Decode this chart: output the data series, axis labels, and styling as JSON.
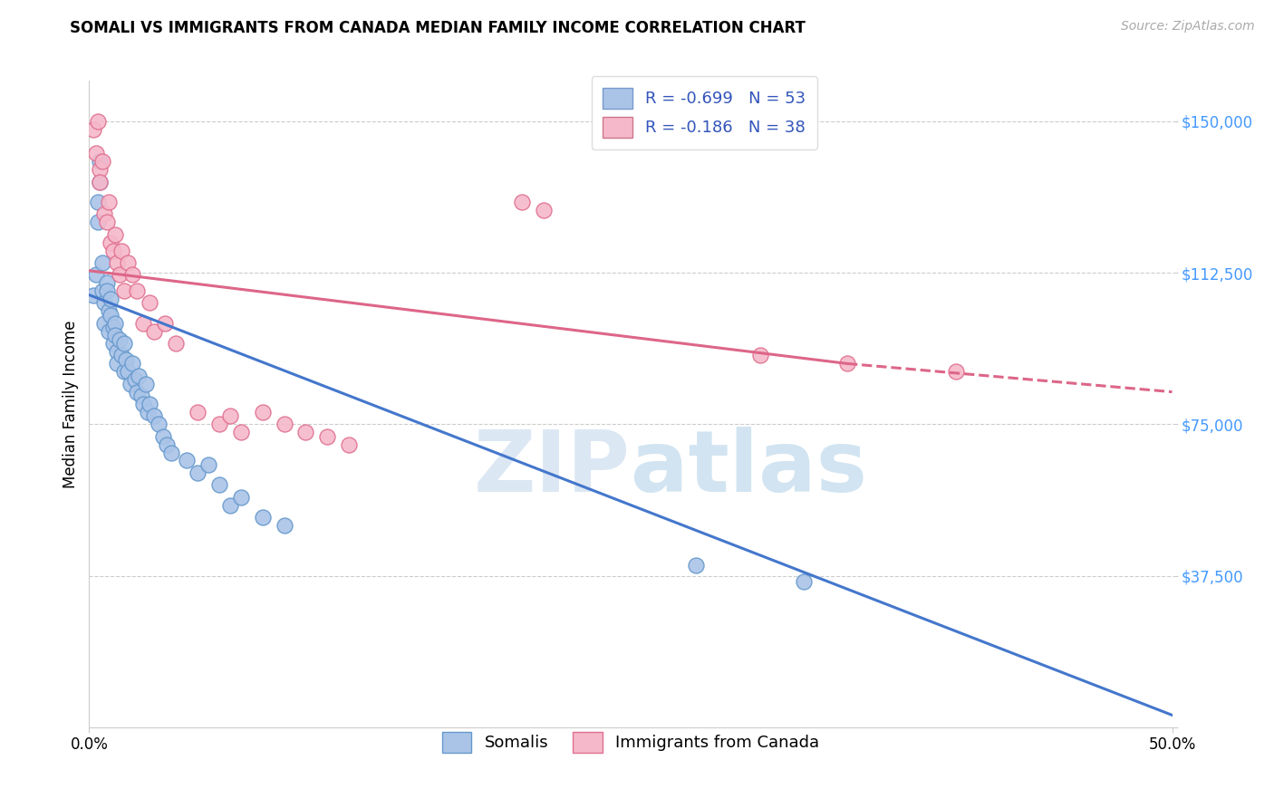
{
  "title": "SOMALI VS IMMIGRANTS FROM CANADA MEDIAN FAMILY INCOME CORRELATION CHART",
  "source": "Source: ZipAtlas.com",
  "xlabel_ticks": [
    "0.0%",
    "50.0%"
  ],
  "ylabel_label": "Median Family Income",
  "yticks": [
    0,
    37500,
    75000,
    112500,
    150000
  ],
  "ytick_labels": [
    "",
    "$37,500",
    "$75,000",
    "$112,500",
    "$150,000"
  ],
  "xmin": 0.0,
  "xmax": 0.5,
  "ymin": 0,
  "ymax": 160000,
  "watermark_zip": "ZIP",
  "watermark_atlas": "atlas",
  "legend_entries": [
    {
      "color": "#aac4e8",
      "label": "R = -0.699   N = 53"
    },
    {
      "color": "#f5b8ca",
      "label": "R = -0.186   N = 38"
    }
  ],
  "somali_color": "#aac4e8",
  "somali_edge": "#6699cc",
  "canada_color": "#f5b8ca",
  "canada_edge": "#e07090",
  "blue_line_color": "#4477cc",
  "pink_line_color": "#dd6688",
  "somali_points": [
    [
      0.002,
      107000
    ],
    [
      0.003,
      112000
    ],
    [
      0.004,
      130000
    ],
    [
      0.004,
      125000
    ],
    [
      0.005,
      140000
    ],
    [
      0.005,
      135000
    ],
    [
      0.006,
      108000
    ],
    [
      0.006,
      115000
    ],
    [
      0.007,
      105000
    ],
    [
      0.007,
      100000
    ],
    [
      0.008,
      110000
    ],
    [
      0.008,
      108000
    ],
    [
      0.009,
      103000
    ],
    [
      0.009,
      98000
    ],
    [
      0.01,
      106000
    ],
    [
      0.01,
      102000
    ],
    [
      0.011,
      99000
    ],
    [
      0.011,
      95000
    ],
    [
      0.012,
      100000
    ],
    [
      0.012,
      97000
    ],
    [
      0.013,
      93000
    ],
    [
      0.013,
      90000
    ],
    [
      0.014,
      96000
    ],
    [
      0.015,
      92000
    ],
    [
      0.016,
      95000
    ],
    [
      0.016,
      88000
    ],
    [
      0.017,
      91000
    ],
    [
      0.018,
      88000
    ],
    [
      0.019,
      85000
    ],
    [
      0.02,
      90000
    ],
    [
      0.021,
      86000
    ],
    [
      0.022,
      83000
    ],
    [
      0.023,
      87000
    ],
    [
      0.024,
      82000
    ],
    [
      0.025,
      80000
    ],
    [
      0.026,
      85000
    ],
    [
      0.027,
      78000
    ],
    [
      0.028,
      80000
    ],
    [
      0.03,
      77000
    ],
    [
      0.032,
      75000
    ],
    [
      0.034,
      72000
    ],
    [
      0.036,
      70000
    ],
    [
      0.038,
      68000
    ],
    [
      0.045,
      66000
    ],
    [
      0.05,
      63000
    ],
    [
      0.055,
      65000
    ],
    [
      0.06,
      60000
    ],
    [
      0.065,
      55000
    ],
    [
      0.07,
      57000
    ],
    [
      0.08,
      52000
    ],
    [
      0.09,
      50000
    ],
    [
      0.28,
      40000
    ],
    [
      0.33,
      36000
    ]
  ],
  "canada_points": [
    [
      0.002,
      148000
    ],
    [
      0.003,
      142000
    ],
    [
      0.004,
      150000
    ],
    [
      0.005,
      138000
    ],
    [
      0.005,
      135000
    ],
    [
      0.006,
      140000
    ],
    [
      0.007,
      127000
    ],
    [
      0.008,
      125000
    ],
    [
      0.009,
      130000
    ],
    [
      0.01,
      120000
    ],
    [
      0.011,
      118000
    ],
    [
      0.012,
      122000
    ],
    [
      0.013,
      115000
    ],
    [
      0.014,
      112000
    ],
    [
      0.015,
      118000
    ],
    [
      0.016,
      108000
    ],
    [
      0.018,
      115000
    ],
    [
      0.02,
      112000
    ],
    [
      0.022,
      108000
    ],
    [
      0.025,
      100000
    ],
    [
      0.028,
      105000
    ],
    [
      0.03,
      98000
    ],
    [
      0.035,
      100000
    ],
    [
      0.04,
      95000
    ],
    [
      0.05,
      78000
    ],
    [
      0.06,
      75000
    ],
    [
      0.065,
      77000
    ],
    [
      0.07,
      73000
    ],
    [
      0.08,
      78000
    ],
    [
      0.09,
      75000
    ],
    [
      0.1,
      73000
    ],
    [
      0.11,
      72000
    ],
    [
      0.12,
      70000
    ],
    [
      0.2,
      130000
    ],
    [
      0.21,
      128000
    ],
    [
      0.31,
      92000
    ],
    [
      0.35,
      90000
    ],
    [
      0.4,
      88000
    ]
  ],
  "blue_line": {
    "x0": 0.0,
    "y0": 107000,
    "x1": 0.5,
    "y1": 3000
  },
  "pink_line_solid": {
    "x0": 0.0,
    "y0": 113000,
    "x1": 0.35,
    "y1": 90000
  },
  "pink_line_dashed": {
    "x0": 0.35,
    "y0": 90000,
    "x1": 0.5,
    "y1": 83000
  }
}
